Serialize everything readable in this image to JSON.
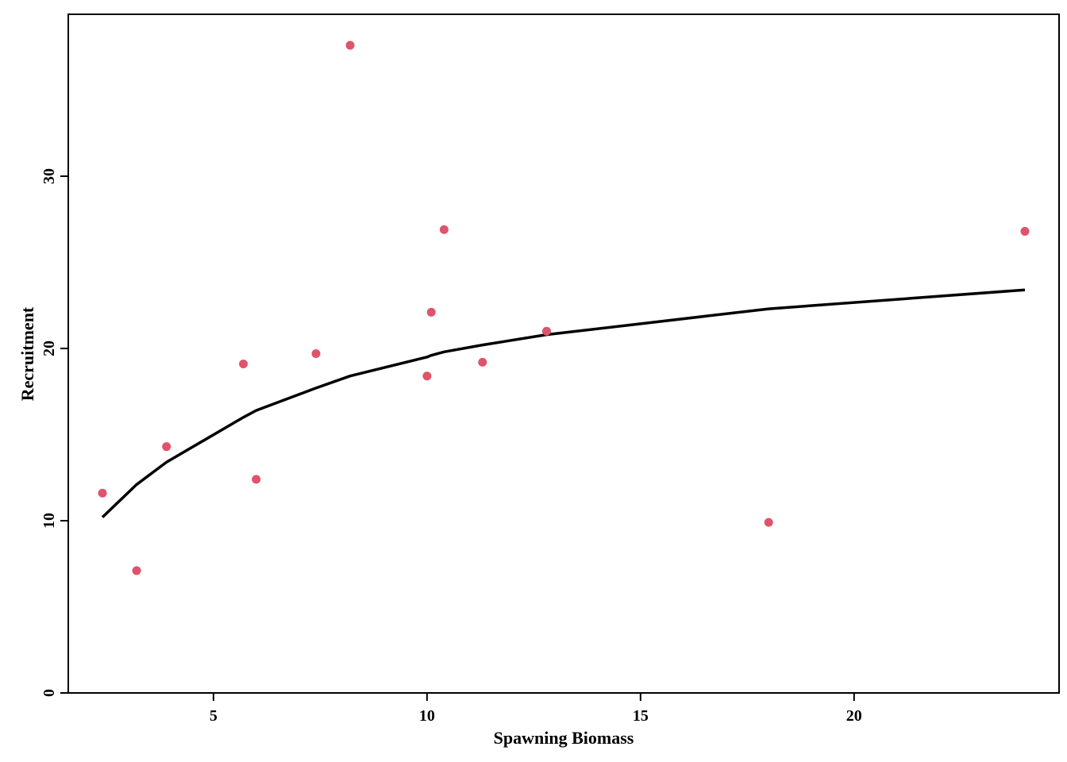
{
  "chart_data": {
    "type": "scatter",
    "title": "",
    "xlabel": "Spawning Biomass",
    "ylabel": "Recruitment",
    "xlim": [
      1.6,
      24.8
    ],
    "ylim": [
      0,
      39.4
    ],
    "x_ticks": [
      5,
      10,
      15,
      20
    ],
    "y_ticks": [
      0,
      10,
      20,
      30
    ],
    "grid": false,
    "series": [
      {
        "kind": "points",
        "color": "#DF536B",
        "points": [
          {
            "x": 2.4,
            "y": 11.6
          },
          {
            "x": 3.2,
            "y": 7.1
          },
          {
            "x": 3.9,
            "y": 14.3
          },
          {
            "x": 5.7,
            "y": 19.1
          },
          {
            "x": 6.0,
            "y": 12.4
          },
          {
            "x": 7.4,
            "y": 19.7
          },
          {
            "x": 8.2,
            "y": 37.6
          },
          {
            "x": 10.0,
            "y": 18.4
          },
          {
            "x": 10.1,
            "y": 22.1
          },
          {
            "x": 10.4,
            "y": 26.9
          },
          {
            "x": 11.3,
            "y": 19.2
          },
          {
            "x": 12.8,
            "y": 21.0
          },
          {
            "x": 18.0,
            "y": 9.9
          },
          {
            "x": 24.0,
            "y": 26.8
          }
        ]
      },
      {
        "kind": "fitted-line",
        "color": "#000000",
        "points": [
          {
            "x": 2.4,
            "y": 10.2
          },
          {
            "x": 3.2,
            "y": 12.1
          },
          {
            "x": 3.9,
            "y": 13.4
          },
          {
            "x": 5.7,
            "y": 16.0
          },
          {
            "x": 6.0,
            "y": 16.4
          },
          {
            "x": 7.4,
            "y": 17.7
          },
          {
            "x": 8.2,
            "y": 18.4
          },
          {
            "x": 10.0,
            "y": 19.5
          },
          {
            "x": 10.1,
            "y": 19.6
          },
          {
            "x": 10.4,
            "y": 19.8
          },
          {
            "x": 11.3,
            "y": 20.2
          },
          {
            "x": 12.8,
            "y": 20.8
          },
          {
            "x": 18.0,
            "y": 22.3
          },
          {
            "x": 24.0,
            "y": 23.4
          }
        ]
      }
    ]
  }
}
